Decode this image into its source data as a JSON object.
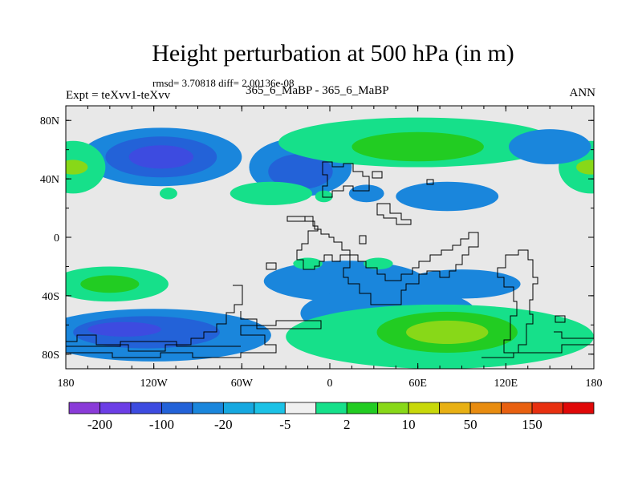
{
  "header": {
    "title": "Height perturbation at 500 hPa (in m)",
    "subtitle": "rmsd= 3.70818 diff= 2.00136e-08",
    "left_label": "Expt = teXvv1-teXvv",
    "center_label": "365_6_MaBP - 365_6_MaBP",
    "right_label": "ANN"
  },
  "chart_data": {
    "type": "heatmap",
    "title": "Height perturbation at 500 hPa (in m)",
    "xlim": [
      -180,
      180
    ],
    "ylim": [
      -90,
      90
    ],
    "x_ticks": [
      {
        "value": -180,
        "label": "180"
      },
      {
        "value": -120,
        "label": "120W"
      },
      {
        "value": -60,
        "label": "60W"
      },
      {
        "value": 0,
        "label": "0"
      },
      {
        "value": 60,
        "label": "60E"
      },
      {
        "value": 120,
        "label": "120E"
      },
      {
        "value": 180,
        "label": "180"
      }
    ],
    "y_ticks": [
      {
        "value": 80,
        "label": "80N"
      },
      {
        "value": 40,
        "label": "40N"
      },
      {
        "value": 0,
        "label": "0"
      },
      {
        "value": -40,
        "label": "40S"
      },
      {
        "value": -80,
        "label": "80S"
      }
    ],
    "background_color": "#e8e8e8",
    "colorbar": {
      "colors": [
        "#8a3bd8",
        "#6c3ee6",
        "#3d4be0",
        "#2362d8",
        "#1a86dc",
        "#16a8e0",
        "#1cc2e6",
        "#f0f0f0",
        "#16e08a",
        "#22cc22",
        "#88d818",
        "#c8d80a",
        "#e8b014",
        "#e88c10",
        "#e86010",
        "#e83010",
        "#e00808"
      ],
      "labels": [
        "-200",
        "-100",
        "-20",
        "-5",
        "2",
        "10",
        "50",
        "150"
      ],
      "label_after_box": [
        1,
        3,
        5,
        7,
        9,
        11,
        13,
        15
      ]
    },
    "anomalies": [
      {
        "lon": -115,
        "lat": 55,
        "rx": 55,
        "ry": 20,
        "level": -3
      },
      {
        "lon": -115,
        "lat": 55,
        "rx": 38,
        "ry": 14,
        "level": -4
      },
      {
        "lon": -115,
        "lat": 55,
        "rx": 22,
        "ry": 8,
        "level": -5
      },
      {
        "lon": -175,
        "lat": 48,
        "rx": 22,
        "ry": 18,
        "level": 1
      },
      {
        "lon": -175,
        "lat": 48,
        "rx": 10,
        "ry": 5,
        "level": 3
      },
      {
        "lon": 178,
        "lat": 48,
        "rx": 22,
        "ry": 18,
        "level": 1
      },
      {
        "lon": 178,
        "lat": 48,
        "rx": 10,
        "ry": 5,
        "level": 3
      },
      {
        "lon": -110,
        "lat": 30,
        "rx": 6,
        "ry": 4,
        "level": 1
      },
      {
        "lon": -20,
        "lat": 48,
        "rx": 35,
        "ry": 20,
        "level": -3
      },
      {
        "lon": -20,
        "lat": 45,
        "rx": 22,
        "ry": 12,
        "level": -4
      },
      {
        "lon": 60,
        "lat": 65,
        "rx": 95,
        "ry": 17,
        "level": 1
      },
      {
        "lon": 60,
        "lat": 62,
        "rx": 45,
        "ry": 10,
        "level": 2
      },
      {
        "lon": 150,
        "lat": 62,
        "rx": 28,
        "ry": 12,
        "level": -3
      },
      {
        "lon": 80,
        "lat": 28,
        "rx": 35,
        "ry": 10,
        "level": -3
      },
      {
        "lon": 25,
        "lat": 30,
        "rx": 12,
        "ry": 6,
        "level": -3
      },
      {
        "lon": -40,
        "lat": 30,
        "rx": 28,
        "ry": 8,
        "level": 1
      },
      {
        "lon": -4,
        "lat": 28,
        "rx": 6,
        "ry": 4,
        "level": 1
      },
      {
        "lon": -150,
        "lat": -32,
        "rx": 40,
        "ry": 12,
        "level": 1
      },
      {
        "lon": -150,
        "lat": -32,
        "rx": 20,
        "ry": 6,
        "level": 2
      },
      {
        "lon": 10,
        "lat": -30,
        "rx": 55,
        "ry": 14,
        "level": -3
      },
      {
        "lon": 90,
        "lat": -32,
        "rx": 40,
        "ry": 10,
        "level": -3
      },
      {
        "lon": -15,
        "lat": -18,
        "rx": 10,
        "ry": 4,
        "level": 1
      },
      {
        "lon": 33,
        "lat": -18,
        "rx": 10,
        "ry": 4,
        "level": 1
      },
      {
        "lon": -120,
        "lat": -67,
        "rx": 80,
        "ry": 18,
        "level": -3
      },
      {
        "lon": -125,
        "lat": -65,
        "rx": 50,
        "ry": 11,
        "level": -4
      },
      {
        "lon": -140,
        "lat": -63,
        "rx": 25,
        "ry": 5,
        "level": -5
      },
      {
        "lon": 40,
        "lat": -52,
        "rx": 60,
        "ry": 18,
        "level": -3
      },
      {
        "lon": 75,
        "lat": -68,
        "rx": 105,
        "ry": 22,
        "level": 1
      },
      {
        "lon": 80,
        "lat": -65,
        "rx": 48,
        "ry": 14,
        "level": 2
      },
      {
        "lon": 80,
        "lat": -65,
        "rx": 28,
        "ry": 8,
        "level": 3
      }
    ]
  }
}
